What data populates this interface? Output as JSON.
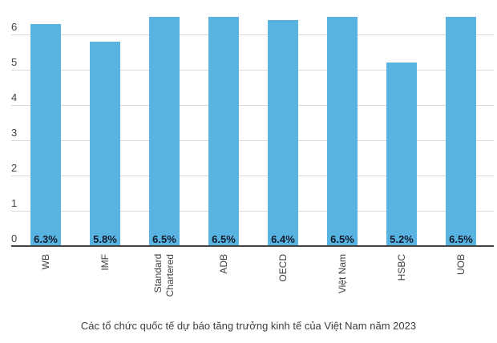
{
  "chart_data": {
    "type": "bar",
    "title": "",
    "caption": "Các tổ chức quốc tế dự báo tăng trưởng kinh tế của Việt Nam năm 2023",
    "categories": [
      "WB",
      "IMF",
      "Standard Chartered",
      "ADB",
      "OECD",
      "Việt Nam",
      "HSBC",
      "UOB"
    ],
    "categories_display": [
      [
        "WB"
      ],
      [
        "IMF"
      ],
      [
        "Standard",
        "Chartered"
      ],
      [
        "ADB"
      ],
      [
        "OECD"
      ],
      [
        "Việt Nam"
      ],
      [
        "HSBC"
      ],
      [
        "UOB"
      ]
    ],
    "values": [
      6.3,
      5.8,
      6.5,
      6.5,
      6.4,
      6.5,
      5.2,
      6.5
    ],
    "bar_labels": [
      "6.3%",
      "5.8%",
      "6.5%",
      "6.5%",
      "6.4%",
      "6.5%",
      "5.2%",
      "6.5%"
    ],
    "unit": "%",
    "xlabel": "",
    "ylabel": "",
    "ylim": [
      0,
      7
    ],
    "yticks": [
      0,
      1,
      2,
      3,
      4,
      5,
      6
    ],
    "grid": true,
    "legend": "none",
    "bar_label_position": "inside-bottom",
    "x_label_orientation": "vertical-bottom-to-top"
  },
  "colors": {
    "bar_fill": "#59B3E0",
    "value_label": "#111A2B",
    "axis_line": "#424242",
    "gridline": "#D9D9D9",
    "tick_label": "#424242",
    "x_label": "#3F3F3F",
    "caption": "#3D3D3D",
    "background": "#FFFFFF"
  }
}
